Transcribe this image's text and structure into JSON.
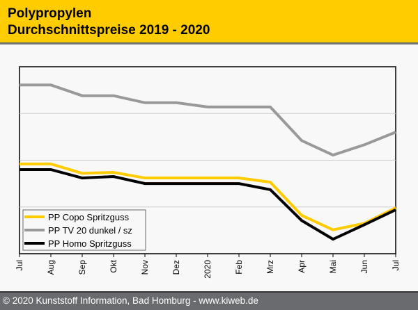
{
  "header": {
    "title_line1": "Polypropylen",
    "title_line2": "Durchschnittspreise 2019 - 2020",
    "background": "#ffcc00"
  },
  "footer": {
    "text": "© 2020 Kunststoff Information, Bad Homburg - www.kiweb.de"
  },
  "chart_data": {
    "type": "line",
    "title": "Polypropylen Durchschnittspreise 2019 - 2020",
    "xlabel": "",
    "ylabel": "",
    "categories": [
      "Jul",
      "Aug",
      "Sep",
      "Okt",
      "Nov",
      "Dez",
      "2020",
      "Feb",
      "Mrz",
      "Apr",
      "Mai",
      "Jun",
      "Jul"
    ],
    "ylim": [
      0,
      4
    ],
    "y_units": "relative (no y-axis labels shown)",
    "grid": "horizontal",
    "legend_position": "bottom-left",
    "series": [
      {
        "name": "PP Copo Spritzguss",
        "color": "#ffcc00",
        "values": [
          1.92,
          1.92,
          1.72,
          1.74,
          1.62,
          1.62,
          1.62,
          1.62,
          1.53,
          0.82,
          0.51,
          0.65,
          0.98
        ]
      },
      {
        "name": "PP TV 20 dunkel / sz",
        "color": "#999999",
        "values": [
          3.61,
          3.61,
          3.38,
          3.38,
          3.23,
          3.23,
          3.14,
          3.14,
          3.14,
          2.42,
          2.11,
          2.33,
          2.6
        ]
      },
      {
        "name": "PP Homo Spritzguss",
        "color": "#000000",
        "values": [
          1.8,
          1.8,
          1.62,
          1.65,
          1.5,
          1.5,
          1.5,
          1.5,
          1.37,
          0.71,
          0.31,
          0.62,
          0.94
        ]
      }
    ],
    "gridlines": [
      1,
      2,
      3
    ]
  }
}
